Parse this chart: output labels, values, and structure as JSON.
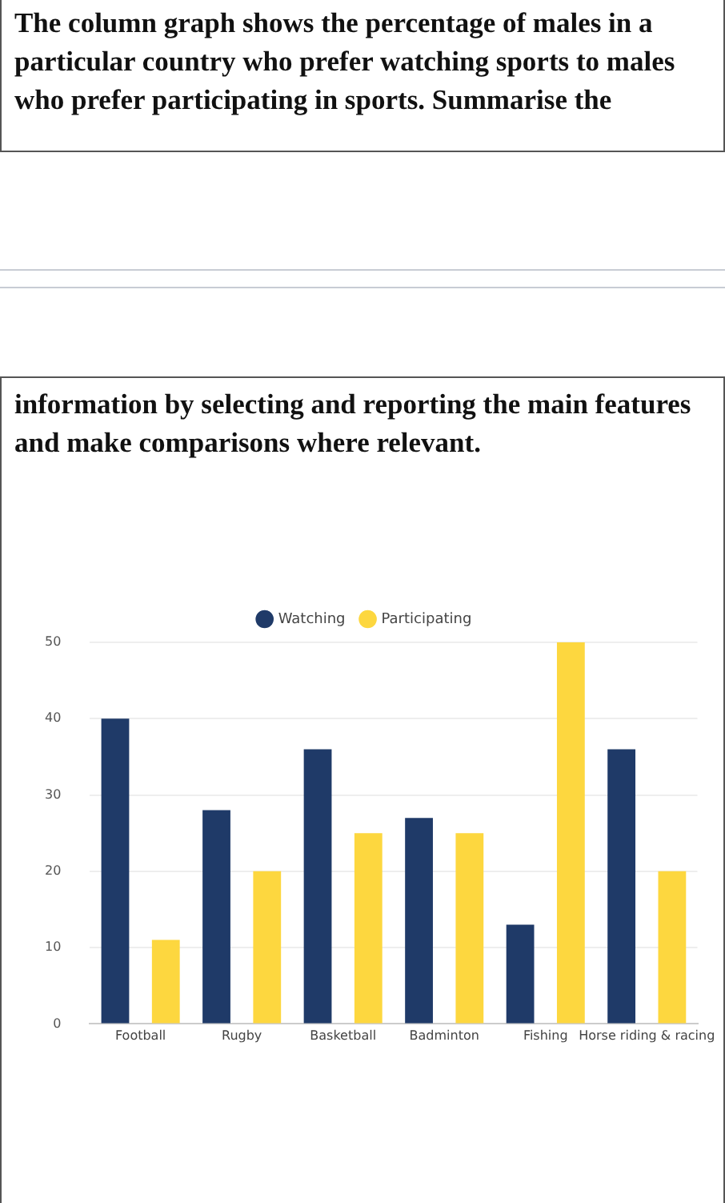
{
  "chart_data": {
    "type": "bar",
    "title": "The column graph shows the percentage of males in a particular country who prefer watching sports to males who prefer participating in sports. Summarise the",
    "subtitle": "information by selecting and reporting the main features and make comparisons where relevant.",
    "categories": [
      "Football",
      "Rugby",
      "Basketball",
      "Badminton",
      "Fishing",
      "Horse riding & racing"
    ],
    "series": [
      {
        "name": "Watching",
        "color": "#1f3a68",
        "values": [
          40,
          28,
          36,
          27,
          13,
          36
        ]
      },
      {
        "name": "Participating",
        "color": "#fdd73f",
        "values": [
          11,
          20,
          25,
          25,
          50,
          20
        ]
      }
    ],
    "ylim": [
      0,
      50
    ],
    "yticks": [
      0,
      10,
      20,
      30,
      40,
      50
    ],
    "grid": "y",
    "legend": "top"
  }
}
